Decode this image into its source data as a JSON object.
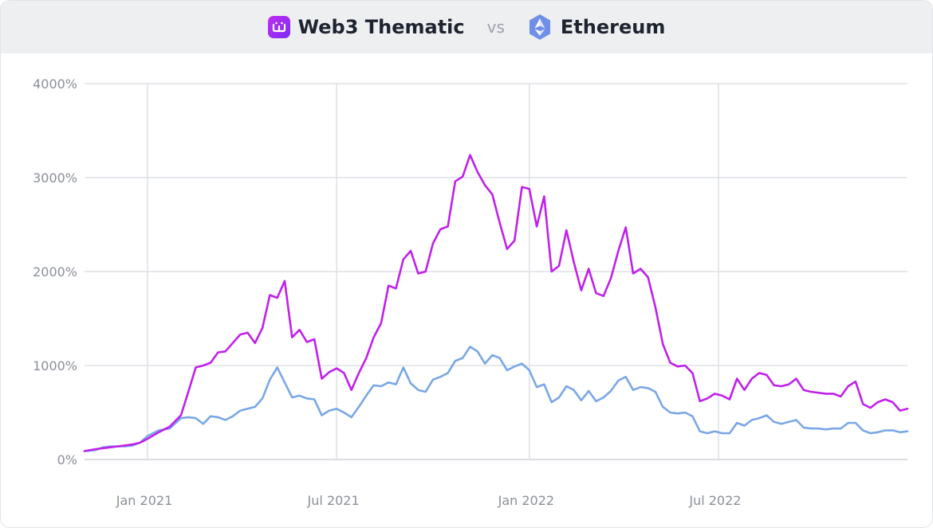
{
  "header": {
    "series_a_label": "Web3 Thematic",
    "vs_label": "vs",
    "series_b_label": "Ethereum",
    "series_a_icon": "web3-thematic-logo-icon",
    "series_b_icon": "ethereum-logo-icon"
  },
  "colors": {
    "web3": "#c020ec",
    "ethereum": "#7aa7e6",
    "grid": "#dde0e5",
    "axis": "#cfd2d7",
    "tick_text": "#8a8f98"
  },
  "chart_data": {
    "type": "line",
    "title": "",
    "xlabel": "",
    "ylabel": "",
    "x_ticks": [
      "Jan 2021",
      "Jul 2021",
      "Jan 2022",
      "Jul 2022"
    ],
    "y_ticks": [
      "0%",
      "1000%",
      "2000%",
      "3000%",
      "4000%"
    ],
    "ylim": [
      0,
      4000
    ],
    "grid": true,
    "series": [
      {
        "name": "Web3 Thematic",
        "points": [
          [
            0,
            90
          ],
          [
            3,
            110
          ],
          [
            5,
            120
          ],
          [
            7,
            130
          ],
          [
            9,
            140
          ],
          [
            11,
            150
          ],
          [
            13,
            160
          ],
          [
            15,
            180
          ],
          [
            17,
            220
          ],
          [
            20,
            290
          ],
          [
            23,
            350
          ],
          [
            26,
            470
          ],
          [
            28,
            720
          ],
          [
            30,
            980
          ],
          [
            32,
            1000
          ],
          [
            34,
            1030
          ],
          [
            36,
            1140
          ],
          [
            38,
            1150
          ],
          [
            40,
            1240
          ],
          [
            42,
            1330
          ],
          [
            44,
            1350
          ],
          [
            46,
            1240
          ],
          [
            48,
            1400
          ],
          [
            50,
            1750
          ],
          [
            52,
            1720
          ],
          [
            54,
            1900
          ],
          [
            56,
            1300
          ],
          [
            58,
            1380
          ],
          [
            60,
            1250
          ],
          [
            62,
            1280
          ],
          [
            64,
            860
          ],
          [
            66,
            930
          ],
          [
            68,
            970
          ],
          [
            70,
            920
          ],
          [
            72,
            740
          ],
          [
            74,
            920
          ],
          [
            76,
            1080
          ],
          [
            78,
            1300
          ],
          [
            80,
            1450
          ],
          [
            82,
            1850
          ],
          [
            84,
            1820
          ],
          [
            86,
            2130
          ],
          [
            88,
            2220
          ],
          [
            90,
            1980
          ],
          [
            92,
            2000
          ],
          [
            94,
            2300
          ],
          [
            96,
            2450
          ],
          [
            98,
            2480
          ],
          [
            100,
            2960
          ],
          [
            102,
            3010
          ],
          [
            104,
            3240
          ],
          [
            106,
            3060
          ],
          [
            108,
            2920
          ],
          [
            110,
            2820
          ],
          [
            112,
            2520
          ],
          [
            114,
            2240
          ],
          [
            116,
            2330
          ],
          [
            118,
            2900
          ],
          [
            120,
            2880
          ],
          [
            122,
            2480
          ],
          [
            124,
            2800
          ],
          [
            126,
            2000
          ],
          [
            128,
            2060
          ],
          [
            130,
            2440
          ],
          [
            132,
            2100
          ],
          [
            134,
            1800
          ],
          [
            136,
            2030
          ],
          [
            138,
            1770
          ],
          [
            140,
            1740
          ],
          [
            142,
            1930
          ],
          [
            144,
            2220
          ],
          [
            146,
            2470
          ],
          [
            148,
            1980
          ],
          [
            150,
            2030
          ],
          [
            152,
            1940
          ],
          [
            154,
            1620
          ],
          [
            156,
            1230
          ],
          [
            158,
            1030
          ],
          [
            160,
            990
          ],
          [
            162,
            1000
          ],
          [
            164,
            920
          ],
          [
            166,
            620
          ],
          [
            168,
            650
          ],
          [
            170,
            700
          ],
          [
            172,
            680
          ],
          [
            174,
            640
          ],
          [
            176,
            860
          ],
          [
            178,
            740
          ],
          [
            180,
            860
          ],
          [
            182,
            920
          ],
          [
            184,
            900
          ],
          [
            186,
            790
          ],
          [
            188,
            780
          ],
          [
            190,
            800
          ],
          [
            192,
            860
          ],
          [
            194,
            740
          ],
          [
            196,
            720
          ],
          [
            198,
            710
          ],
          [
            200,
            700
          ],
          [
            202,
            700
          ],
          [
            204,
            670
          ],
          [
            206,
            780
          ],
          [
            208,
            830
          ],
          [
            210,
            590
          ],
          [
            212,
            550
          ],
          [
            214,
            610
          ],
          [
            216,
            640
          ],
          [
            218,
            610
          ],
          [
            220,
            520
          ],
          [
            222,
            540
          ]
        ]
      },
      {
        "name": "Ethereum",
        "points": [
          [
            0,
            90
          ],
          [
            3,
            100
          ],
          [
            5,
            130
          ],
          [
            7,
            140
          ],
          [
            9,
            140
          ],
          [
            11,
            140
          ],
          [
            13,
            150
          ],
          [
            15,
            180
          ],
          [
            17,
            250
          ],
          [
            20,
            310
          ],
          [
            23,
            330
          ],
          [
            26,
            440
          ],
          [
            28,
            450
          ],
          [
            30,
            440
          ],
          [
            32,
            380
          ],
          [
            34,
            460
          ],
          [
            36,
            450
          ],
          [
            38,
            420
          ],
          [
            40,
            460
          ],
          [
            42,
            520
          ],
          [
            44,
            540
          ],
          [
            46,
            560
          ],
          [
            48,
            650
          ],
          [
            50,
            850
          ],
          [
            52,
            980
          ],
          [
            54,
            820
          ],
          [
            56,
            660
          ],
          [
            58,
            680
          ],
          [
            60,
            650
          ],
          [
            62,
            640
          ],
          [
            64,
            470
          ],
          [
            66,
            520
          ],
          [
            68,
            540
          ],
          [
            70,
            500
          ],
          [
            72,
            450
          ],
          [
            74,
            560
          ],
          [
            76,
            680
          ],
          [
            78,
            790
          ],
          [
            80,
            780
          ],
          [
            82,
            820
          ],
          [
            84,
            800
          ],
          [
            86,
            980
          ],
          [
            88,
            810
          ],
          [
            90,
            740
          ],
          [
            92,
            720
          ],
          [
            94,
            850
          ],
          [
            96,
            880
          ],
          [
            98,
            920
          ],
          [
            100,
            1050
          ],
          [
            102,
            1080
          ],
          [
            104,
            1200
          ],
          [
            106,
            1150
          ],
          [
            108,
            1020
          ],
          [
            110,
            1110
          ],
          [
            112,
            1080
          ],
          [
            114,
            950
          ],
          [
            116,
            990
          ],
          [
            118,
            1020
          ],
          [
            120,
            950
          ],
          [
            122,
            770
          ],
          [
            124,
            800
          ],
          [
            126,
            610
          ],
          [
            128,
            660
          ],
          [
            130,
            780
          ],
          [
            132,
            740
          ],
          [
            134,
            630
          ],
          [
            136,
            730
          ],
          [
            138,
            620
          ],
          [
            140,
            660
          ],
          [
            142,
            730
          ],
          [
            144,
            840
          ],
          [
            146,
            880
          ],
          [
            148,
            740
          ],
          [
            150,
            770
          ],
          [
            152,
            760
          ],
          [
            154,
            720
          ],
          [
            156,
            560
          ],
          [
            158,
            500
          ],
          [
            160,
            490
          ],
          [
            162,
            500
          ],
          [
            164,
            460
          ],
          [
            166,
            300
          ],
          [
            168,
            280
          ],
          [
            170,
            300
          ],
          [
            172,
            280
          ],
          [
            174,
            280
          ],
          [
            176,
            390
          ],
          [
            178,
            360
          ],
          [
            180,
            420
          ],
          [
            182,
            440
          ],
          [
            184,
            470
          ],
          [
            186,
            400
          ],
          [
            188,
            380
          ],
          [
            190,
            400
          ],
          [
            192,
            420
          ],
          [
            194,
            340
          ],
          [
            196,
            330
          ],
          [
            198,
            330
          ],
          [
            200,
            320
          ],
          [
            202,
            330
          ],
          [
            204,
            330
          ],
          [
            206,
            390
          ],
          [
            208,
            390
          ],
          [
            210,
            310
          ],
          [
            212,
            280
          ],
          [
            214,
            290
          ],
          [
            216,
            310
          ],
          [
            218,
            310
          ],
          [
            220,
            290
          ],
          [
            222,
            300
          ]
        ]
      }
    ]
  }
}
